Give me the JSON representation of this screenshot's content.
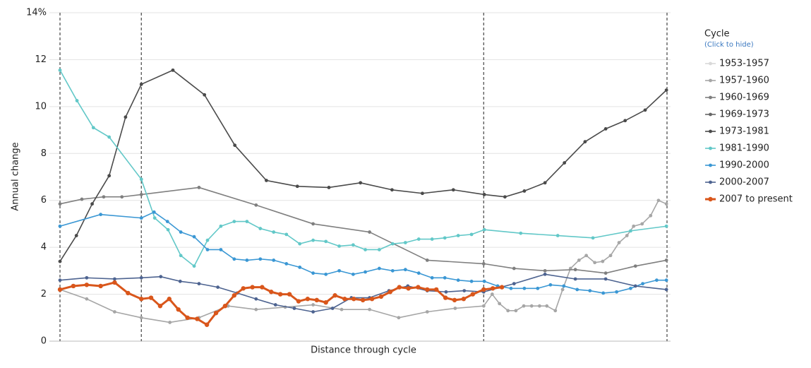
{
  "chart_data": {
    "type": "line",
    "x_label": "Distance through cycle",
    "y_label": "Annual change",
    "xlim": [
      0,
      100
    ],
    "ylim": [
      0,
      14
    ],
    "yticks": [
      0,
      2,
      4,
      6,
      8,
      10,
      12,
      {
        "value": 14,
        "label": "14%"
      }
    ],
    "grid": true,
    "vlines": [
      0,
      13.4,
      69.8,
      100
    ],
    "legend_title": "Cycle",
    "legend_subtitle": "(Click to hide)",
    "legend_position": "right",
    "series": [
      {
        "name": "1953-1957",
        "color": "#d9d9d9",
        "x": [],
        "values": []
      },
      {
        "name": "1957-1960",
        "color": "#a6a6a6",
        "x": [
          0,
          4.4,
          9.0,
          13.4,
          18.1,
          22.9,
          27.7,
          32.3,
          37.1,
          41.7,
          46.4,
          51.0,
          55.8,
          60.5,
          65.1,
          69.8,
          71.2,
          72.4,
          73.8,
          75.1,
          76.4,
          77.7,
          79.0,
          80.2,
          81.6,
          82.8,
          84.1,
          85.5,
          86.7,
          88.1,
          89.4,
          90.7,
          92.1,
          93.4,
          94.5,
          95.9,
          97.3,
          98.6,
          99.9
        ],
        "values": [
          2.2,
          1.8,
          1.25,
          1.0,
          0.8,
          1.0,
          1.5,
          1.35,
          1.45,
          1.55,
          1.35,
          1.35,
          1.0,
          1.25,
          1.4,
          1.5,
          2.0,
          1.6,
          1.3,
          1.3,
          1.5,
          1.5,
          1.5,
          1.5,
          1.3,
          2.2,
          3.1,
          3.45,
          3.65,
          3.35,
          3.4,
          3.65,
          4.2,
          4.5,
          4.9,
          5.0,
          5.35,
          6.0,
          5.85
        ]
      },
      {
        "name": "1960-1969",
        "color": "#7f7f7f",
        "x": [
          0,
          3.6,
          7.2,
          10.2,
          13.4,
          22.9,
          32.3,
          41.7,
          51.0,
          60.5,
          69.8,
          74.8,
          79.9,
          84.9,
          89.9,
          94.8,
          99.9
        ],
        "values": [
          5.85,
          6.05,
          6.15,
          6.15,
          6.25,
          6.55,
          5.8,
          5.0,
          4.65,
          3.45,
          3.3,
          3.1,
          3.0,
          3.05,
          2.9,
          3.2,
          3.45
        ]
      },
      {
        "name": "1969-1973",
        "color": "#666666",
        "x": [],
        "values": []
      },
      {
        "name": "1973-1981",
        "color": "#4a4a4a",
        "x": [
          0,
          2.7,
          5.3,
          8.1,
          10.8,
          13.4,
          18.6,
          23.8,
          28.8,
          34.0,
          39.1,
          44.3,
          49.5,
          54.7,
          59.7,
          64.8,
          69.9,
          73.3,
          76.5,
          79.9,
          83.1,
          86.5,
          89.9,
          93.1,
          96.4,
          99.9
        ],
        "values": [
          3.4,
          4.5,
          5.85,
          7.05,
          9.55,
          10.95,
          11.55,
          10.5,
          8.35,
          6.85,
          6.6,
          6.55,
          6.75,
          6.45,
          6.3,
          6.45,
          6.25,
          6.15,
          6.4,
          6.75,
          7.6,
          8.5,
          9.05,
          9.4,
          9.85,
          10.7
        ]
      },
      {
        "name": "1981-1990",
        "color": "#62c8c8",
        "x": [
          0,
          2.8,
          5.5,
          8.1,
          13.4,
          15.6,
          17.8,
          19.9,
          22.1,
          24.3,
          26.5,
          28.7,
          30.8,
          33.0,
          35.2,
          37.3,
          39.5,
          41.7,
          43.8,
          46.0,
          48.3,
          50.3,
          52.6,
          54.8,
          56.9,
          59.1,
          61.3,
          63.4,
          65.6,
          67.8,
          69.9,
          75.9,
          82.0,
          87.8,
          94.0,
          99.9
        ],
        "values": [
          11.55,
          10.25,
          9.1,
          8.7,
          6.9,
          5.25,
          4.75,
          3.65,
          3.2,
          4.3,
          4.9,
          5.1,
          5.1,
          4.8,
          4.65,
          4.55,
          4.15,
          4.3,
          4.25,
          4.05,
          4.1,
          3.9,
          3.9,
          4.15,
          4.2,
          4.35,
          4.35,
          4.4,
          4.5,
          4.55,
          4.75,
          4.6,
          4.5,
          4.4,
          4.7,
          4.9
        ]
      },
      {
        "name": "1990-2000",
        "color": "#3a97d4",
        "x": [
          0,
          6.7,
          13.4,
          15.5,
          17.7,
          19.9,
          22.1,
          24.3,
          26.5,
          28.7,
          30.8,
          33.0,
          35.2,
          37.3,
          39.5,
          41.7,
          43.8,
          46.0,
          48.3,
          50.3,
          52.6,
          54.8,
          56.9,
          59.1,
          61.3,
          63.4,
          65.6,
          67.8,
          69.9,
          72.1,
          74.3,
          76.5,
          78.7,
          80.8,
          83.0,
          85.2,
          87.3,
          89.5,
          91.7,
          94.0,
          96.0,
          98.3,
          99.9
        ],
        "values": [
          4.9,
          5.4,
          5.25,
          5.5,
          5.1,
          4.65,
          4.45,
          3.9,
          3.9,
          3.5,
          3.45,
          3.5,
          3.45,
          3.3,
          3.15,
          2.9,
          2.85,
          3.0,
          2.85,
          2.95,
          3.1,
          3.0,
          3.05,
          2.9,
          2.7,
          2.7,
          2.6,
          2.55,
          2.55,
          2.35,
          2.25,
          2.25,
          2.25,
          2.4,
          2.35,
          2.2,
          2.15,
          2.05,
          2.1,
          2.25,
          2.45,
          2.6,
          2.6
        ]
      },
      {
        "name": "2000-2007",
        "color": "#4d6390",
        "x": [
          0,
          4.4,
          9.0,
          13.4,
          16.6,
          19.8,
          22.9,
          26.0,
          29.2,
          32.3,
          35.5,
          38.6,
          41.7,
          44.9,
          48.0,
          51.0,
          54.2,
          57.3,
          60.5,
          63.6,
          66.6,
          69.8,
          74.8,
          79.9,
          84.9,
          89.9,
          94.8,
          99.9
        ],
        "values": [
          2.6,
          2.7,
          2.65,
          2.7,
          2.75,
          2.55,
          2.45,
          2.3,
          2.05,
          1.8,
          1.55,
          1.4,
          1.25,
          1.4,
          1.85,
          1.85,
          2.15,
          2.35,
          2.15,
          2.1,
          2.15,
          2.1,
          2.45,
          2.85,
          2.65,
          2.65,
          2.35,
          2.2
        ]
      },
      {
        "name": "2007 to present",
        "color": "#d9561b",
        "x": [
          0,
          2.2,
          4.4,
          6.7,
          9.0,
          11.2,
          13.4,
          15.0,
          16.5,
          18.0,
          19.5,
          21.0,
          22.6,
          24.2,
          25.7,
          27.2,
          28.7,
          30.2,
          31.7,
          33.3,
          34.8,
          36.3,
          37.8,
          39.3,
          40.8,
          42.3,
          43.8,
          45.3,
          46.9,
          48.4,
          49.9,
          51.4,
          52.9,
          54.4,
          55.9,
          57.4,
          59.0,
          60.5,
          62.0,
          63.5,
          65.0,
          66.5,
          68.0,
          69.8,
          71.3,
          72.8
        ],
        "values": [
          2.2,
          2.35,
          2.4,
          2.35,
          2.5,
          2.05,
          1.8,
          1.85,
          1.5,
          1.8,
          1.35,
          1.0,
          0.95,
          0.7,
          1.2,
          1.5,
          1.95,
          2.25,
          2.3,
          2.3,
          2.1,
          2.0,
          2.0,
          1.7,
          1.8,
          1.75,
          1.65,
          1.95,
          1.8,
          1.8,
          1.75,
          1.8,
          1.9,
          2.1,
          2.3,
          2.25,
          2.3,
          2.2,
          2.2,
          1.85,
          1.75,
          1.8,
          2.0,
          2.2,
          2.25,
          2.3
        ]
      }
    ]
  }
}
